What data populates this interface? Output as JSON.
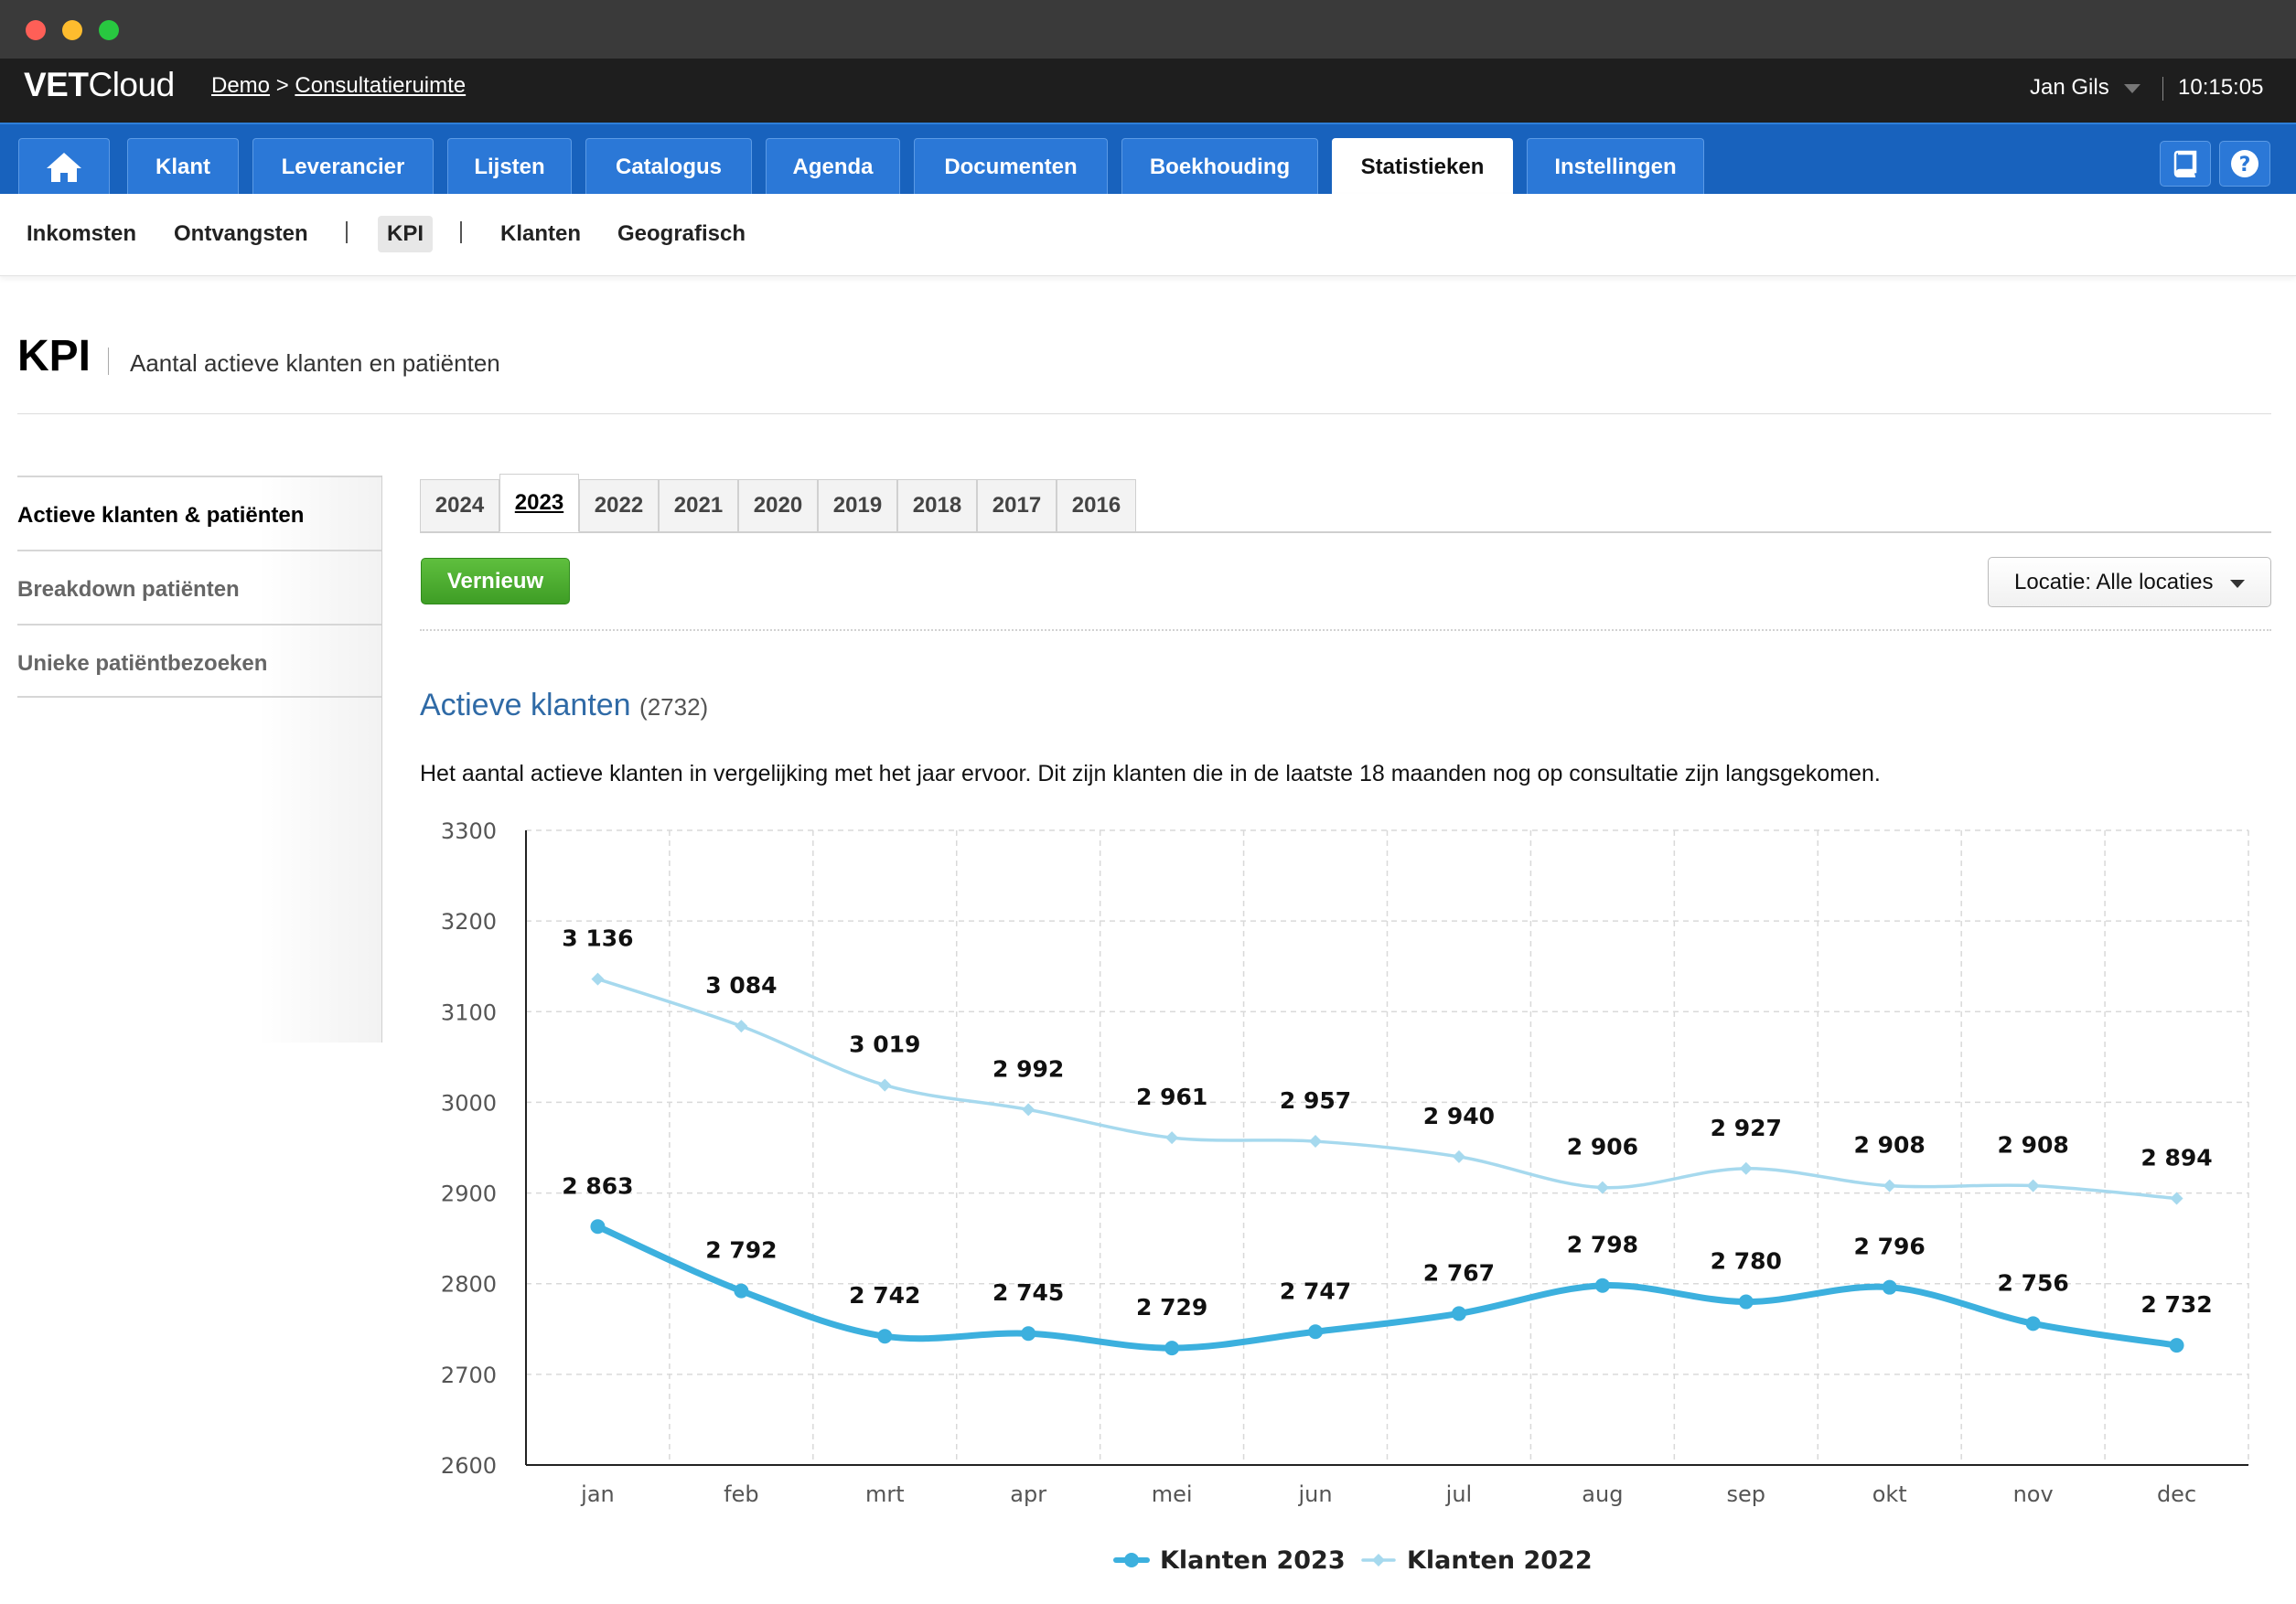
{
  "app": {
    "logo_bold": "VET",
    "logo_light": "Cloud",
    "breadcrumb_1": "Demo",
    "breadcrumb_sep": ">",
    "breadcrumb_2": "Consultatieruimte",
    "user_name": "Jan Gils",
    "clock": "10:15:05"
  },
  "nav": {
    "tabs": [
      "Klant",
      "Leverancier",
      "Lijsten",
      "Catalogus",
      "Agenda",
      "Documenten",
      "Boekhouding",
      "Statistieken",
      "Instellingen"
    ],
    "active": "Statistieken"
  },
  "subnav": {
    "items": [
      "Inkomsten",
      "Ontvangsten",
      "KPI",
      "Klanten",
      "Geografisch"
    ],
    "active": "KPI"
  },
  "page": {
    "title": "KPI",
    "subtitle": "Aantal actieve klanten en patiënten"
  },
  "leftmenu": {
    "items": [
      "Actieve klanten & patiënten",
      "Breakdown patiënten",
      "Unieke patiëntbezoeken"
    ],
    "active_index": 0
  },
  "years": {
    "items": [
      "2024",
      "2023",
      "2022",
      "2021",
      "2020",
      "2019",
      "2018",
      "2017",
      "2016"
    ],
    "active": "2023"
  },
  "toolbar": {
    "refresh_label": "Vernieuw",
    "location_label": "Locatie: Alle locaties"
  },
  "section": {
    "title": "Actieve klanten",
    "count": "(2732)",
    "description": "Het aantal actieve klanten in vergelijking met het jaar ervoor. Dit zijn klanten die in de laatste 18 maanden nog op consultatie zijn langsgekomen."
  },
  "colors": {
    "series_2023": "#3cb0de",
    "series_2022": "#a6d9ee",
    "nav_blue": "#1862bd",
    "refresh_green": "#4cae30"
  },
  "chart_data": {
    "type": "line",
    "categories": [
      "jan",
      "feb",
      "mrt",
      "apr",
      "mei",
      "jun",
      "jul",
      "aug",
      "sep",
      "okt",
      "nov",
      "dec"
    ],
    "ylim": [
      2600,
      3300
    ],
    "yticks": [
      2600,
      2700,
      2800,
      2900,
      3000,
      3100,
      3200,
      3300
    ],
    "grid": true,
    "legend_position": "bottom-center",
    "series": [
      {
        "name": "Klanten 2023",
        "values": [
          2863,
          2792,
          2742,
          2745,
          2729,
          2747,
          2767,
          2798,
          2780,
          2796,
          2756,
          2732
        ],
        "labels": [
          "2 863",
          "2 792",
          "2 742",
          "2 745",
          "2 729",
          "2 747",
          "2 767",
          "2 798",
          "2 780",
          "2 796",
          "2 756",
          "2 732"
        ]
      },
      {
        "name": "Klanten 2022",
        "values": [
          3136,
          3084,
          3019,
          2992,
          2961,
          2957,
          2940,
          2906,
          2927,
          2908,
          2908,
          2894
        ],
        "labels": [
          "3 136",
          "3 084",
          "3 019",
          "2 992",
          "2 961",
          "2 957",
          "2 940",
          "2 906",
          "2 927",
          "2 908",
          "2 908",
          "2 894"
        ]
      }
    ]
  }
}
